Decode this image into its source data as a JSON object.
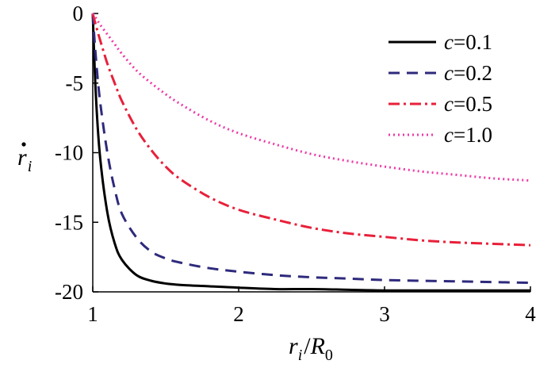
{
  "chart_data": {
    "type": "line",
    "xlabel": {
      "var": "r",
      "sub": "i",
      "sep": "/",
      "var2": "R",
      "sub2": "0"
    },
    "ylabel": {
      "var": "r",
      "sub": "i",
      "dot": true
    },
    "xlim": [
      1,
      4
    ],
    "ylim": [
      -20,
      0
    ],
    "x_ticks": [
      "1",
      "2",
      "3",
      "4"
    ],
    "y_ticks": [
      "0",
      "-5",
      "-10",
      "-15",
      "-20"
    ],
    "grid": false,
    "legend_position": "top-right",
    "x": [
      1.0,
      1.02,
      1.05,
      1.1,
      1.15,
      1.2,
      1.3,
      1.4,
      1.5,
      1.6,
      1.8,
      2.0,
      2.25,
      2.5,
      2.75,
      3.0,
      3.25,
      3.5,
      3.75,
      4.0
    ],
    "series": [
      {
        "name": "c=0.1",
        "legend_var": "c",
        "legend_val": "=0.1",
        "color": "#000000",
        "dash": "",
        "values": [
          0,
          -5.6,
          -10.3,
          -14.3,
          -16.5,
          -17.7,
          -18.8,
          -19.2,
          -19.4,
          -19.5,
          -19.6,
          -19.7,
          -19.8,
          -19.8,
          -19.85,
          -19.9,
          -19.9,
          -19.9,
          -19.9,
          -19.9
        ]
      },
      {
        "name": "c=0.2",
        "legend_var": "c",
        "legend_val": "=0.2",
        "color": "#2e2a7c",
        "dash": "14,9",
        "values": [
          0,
          -3.0,
          -6.3,
          -10.0,
          -12.6,
          -14.4,
          -16.1,
          -17.1,
          -17.6,
          -17.9,
          -18.3,
          -18.55,
          -18.8,
          -18.95,
          -19.05,
          -19.15,
          -19.2,
          -19.25,
          -19.3,
          -19.35
        ]
      },
      {
        "name": "c=0.5",
        "legend_var": "c",
        "legend_val": "=0.5",
        "color": "#e8203a",
        "dash": "14,5,3,5",
        "values": [
          0,
          -0.8,
          -1.9,
          -3.6,
          -5.0,
          -6.3,
          -8.3,
          -9.8,
          -11.0,
          -11.9,
          -13.2,
          -14.1,
          -14.8,
          -15.4,
          -15.8,
          -16.05,
          -16.3,
          -16.45,
          -16.55,
          -16.65
        ]
      },
      {
        "name": "c=1.0",
        "legend_var": "c",
        "legend_val": "=1.0",
        "color": "#ee3aa6",
        "dash": "2,4",
        "values": [
          0,
          -0.3,
          -0.8,
          -1.5,
          -2.2,
          -2.9,
          -4.1,
          -5.0,
          -5.8,
          -6.5,
          -7.7,
          -8.6,
          -9.4,
          -10.1,
          -10.6,
          -11.0,
          -11.35,
          -11.6,
          -11.85,
          -12.0
        ]
      }
    ]
  }
}
